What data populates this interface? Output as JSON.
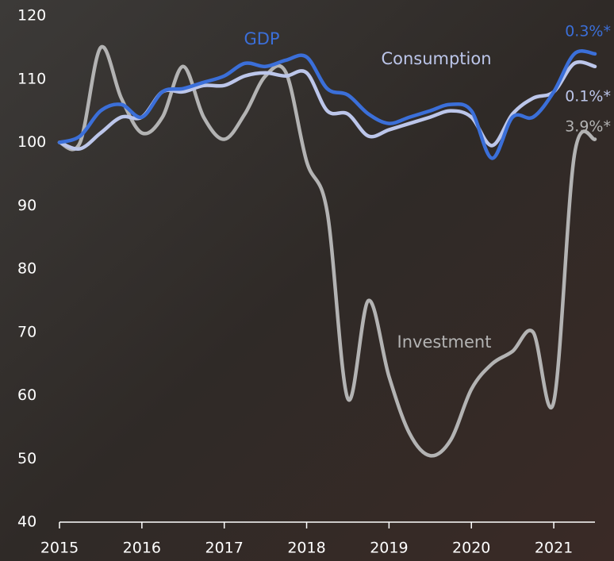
{
  "chart_data": {
    "type": "line",
    "x": [
      2015,
      2015.25,
      2015.5,
      2015.75,
      2016,
      2016.25,
      2016.5,
      2016.75,
      2017,
      2017.25,
      2017.5,
      2017.75,
      2018,
      2018.25,
      2018.5,
      2018.75,
      2019,
      2019.25,
      2019.5,
      2019.75,
      2020,
      2020.25,
      2020.5,
      2020.75,
      2021,
      2021.25,
      2021.5
    ],
    "series": [
      {
        "name": "Investment",
        "color": "#b3b3b3",
        "end_label": "3.9%*",
        "values": [
          100,
          100,
          115,
          107,
          101.5,
          104,
          112,
          104,
          100.5,
          104.5,
          110.5,
          111,
          97,
          89,
          59.5,
          75,
          63,
          54,
          50.5,
          53,
          61,
          65,
          67,
          70,
          59,
          98,
          100.5
        ]
      },
      {
        "name": "Consumption",
        "color": "#bcc6ea",
        "end_label": "0.1%*",
        "values": [
          100,
          99,
          101.5,
          104,
          104,
          108,
          108,
          109,
          109,
          110.5,
          111,
          110.5,
          111,
          105,
          104.5,
          101,
          102,
          103,
          104,
          105,
          104,
          99.5,
          104.5,
          107,
          108,
          112.5,
          112
        ]
      },
      {
        "name": "GDP",
        "color": "#3b6fd9",
        "end_label": "0.3%*",
        "values": [
          100,
          101,
          105,
          106,
          104,
          108,
          108.5,
          109.5,
          110.5,
          112.5,
          112,
          113,
          113.5,
          108.5,
          107.5,
          104.5,
          103,
          104,
          105,
          106,
          105,
          97.5,
          104,
          104,
          108,
          114,
          114
        ]
      }
    ],
    "xlim": [
      2015,
      2021.5
    ],
    "xticks": [
      2015,
      2016,
      2017,
      2018,
      2019,
      2020,
      2021
    ],
    "ylim": [
      40,
      120
    ],
    "yticks": [
      40,
      50,
      60,
      70,
      80,
      90,
      100,
      110,
      120
    ]
  }
}
